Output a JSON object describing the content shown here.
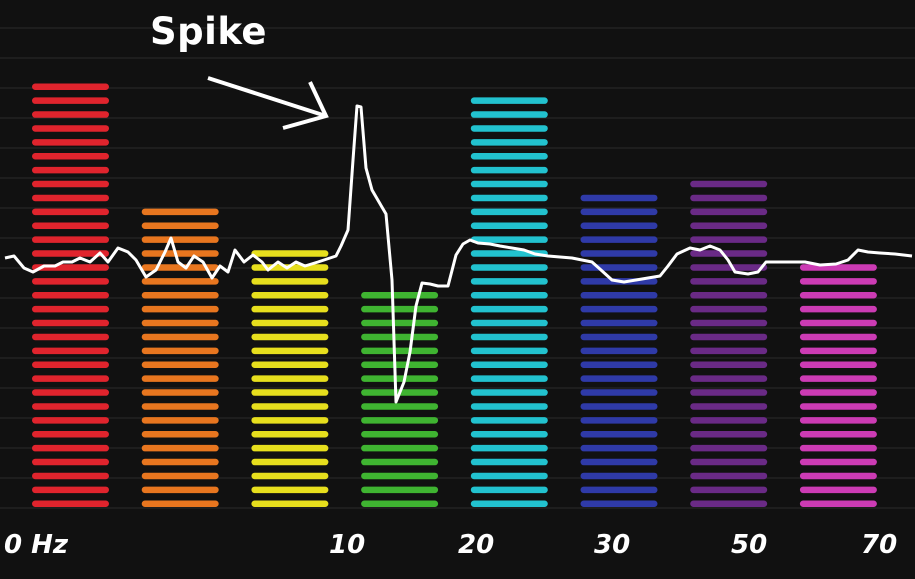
{
  "chart_data": {
    "type": "bar",
    "title": "",
    "xlabel": "",
    "ylabel": "",
    "x_tick_labels": [
      "0 Hz",
      "10",
      "20",
      "30",
      "50",
      "70"
    ],
    "bands": [
      {
        "color": "#e0242d",
        "level": 0.96
      },
      {
        "color": "#e8761f",
        "level": 0.69
      },
      {
        "color": "#e7df1d",
        "level": 0.59
      },
      {
        "color": "#3fb431",
        "level": 0.5
      },
      {
        "color": "#22c2cf",
        "level": 0.93
      },
      {
        "color": "#2f3aa8",
        "level": 0.72
      },
      {
        "color": "#6a2a86",
        "level": 0.75
      },
      {
        "color": "#cc3bb4",
        "level": 0.55
      }
    ],
    "trace_color": "#ffffff",
    "annotation": "Spike"
  }
}
